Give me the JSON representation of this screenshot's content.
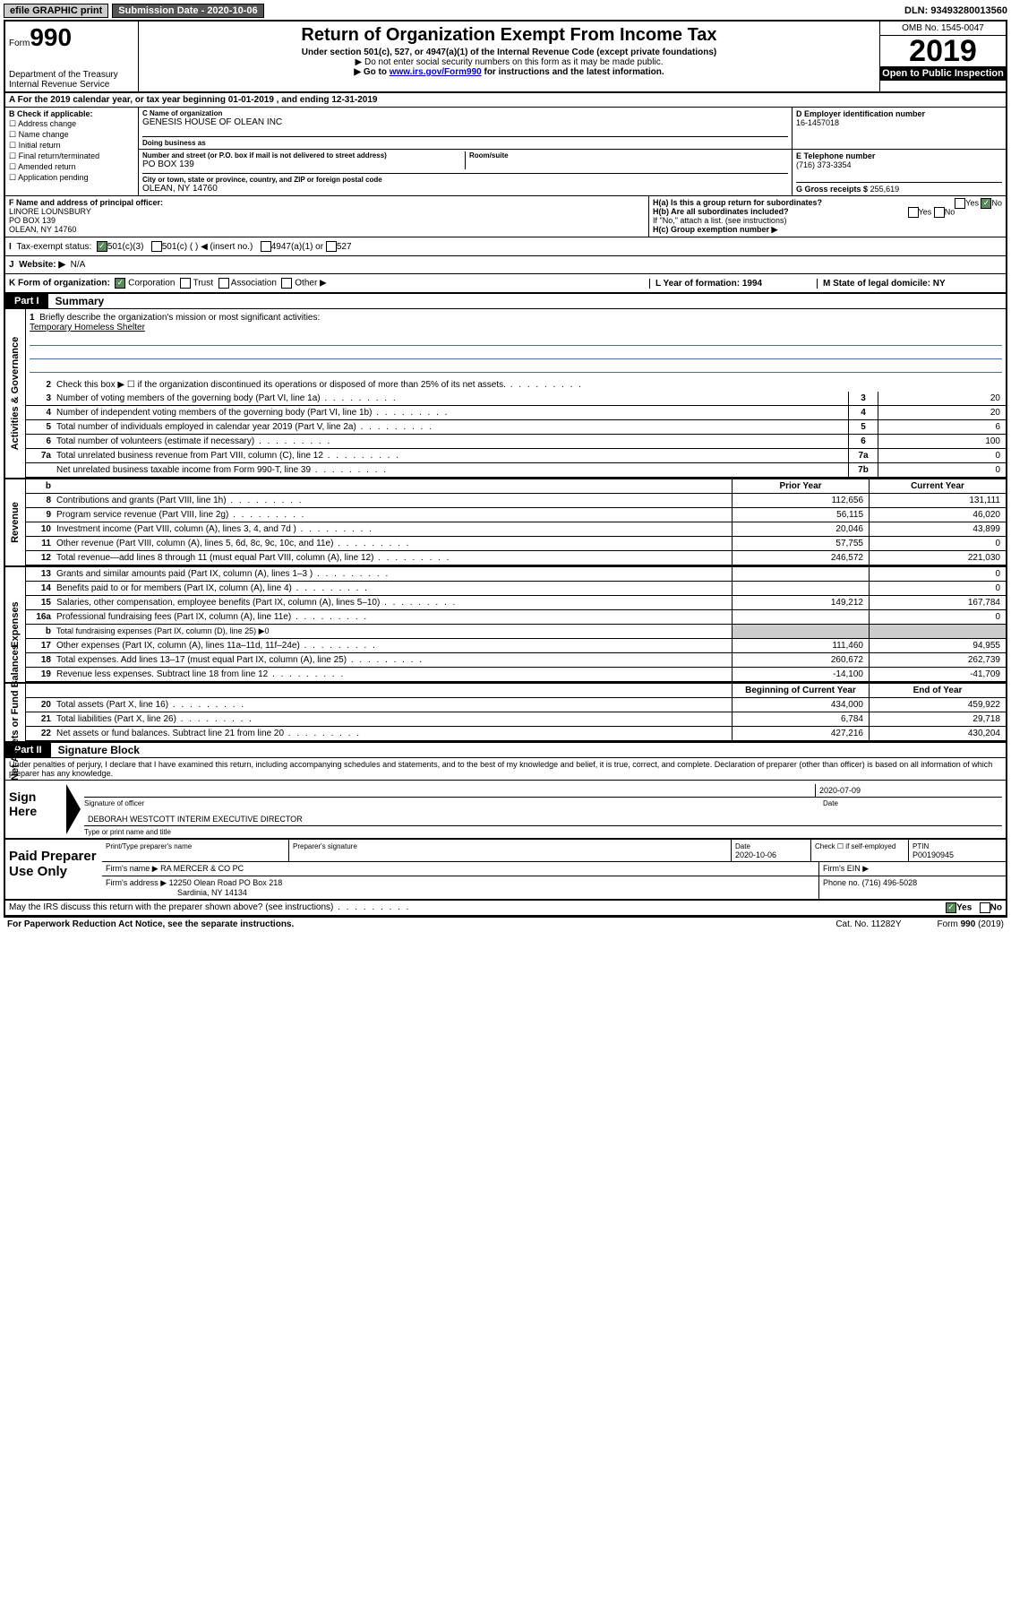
{
  "topbar": {
    "efile": "efile GRAPHIC print",
    "submission_label": "Submission Date - 2020-10-06",
    "dln": "DLN: 93493280013560"
  },
  "header": {
    "form_prefix": "Form",
    "form_number": "990",
    "dept": "Department of the Treasury",
    "irs": "Internal Revenue Service",
    "title": "Return of Organization Exempt From Income Tax",
    "sub1": "Under section 501(c), 527, or 4947(a)(1) of the Internal Revenue Code (except private foundations)",
    "sub2": "▶ Do not enter social security numbers on this form as it may be made public.",
    "sub3_pre": "▶ Go to ",
    "sub3_link": "www.irs.gov/Form990",
    "sub3_post": " for instructions and the latest information.",
    "omb": "OMB No. 1545-0047",
    "year": "2019",
    "open": "Open to Public Inspection"
  },
  "rowA": "A For the 2019 calendar year, or tax year beginning 01-01-2019     , and ending 12-31-2019",
  "boxB": {
    "title": "B Check if applicable:",
    "opts": [
      "Address change",
      "Name change",
      "Initial return",
      "Final return/terminated",
      "Amended return",
      "Application pending"
    ]
  },
  "boxC": {
    "name_label": "C Name of organization",
    "name": "GENESIS HOUSE OF OLEAN INC",
    "dba_label": "Doing business as",
    "addr_label": "Number and street (or P.O. box if mail is not delivered to street address)",
    "room_label": "Room/suite",
    "addr": "PO BOX 139",
    "city_label": "City or town, state or province, country, and ZIP or foreign postal code",
    "city": "OLEAN, NY  14760"
  },
  "boxD": {
    "label": "D Employer identification number",
    "val": "16-1457018"
  },
  "boxE": {
    "label": "E Telephone number",
    "val": "(716) 373-3354"
  },
  "boxG": {
    "label": "G Gross receipts $",
    "val": "255,619"
  },
  "boxF": {
    "label": "F Name and address of principal officer:",
    "name": "LINORE LOUNSBURY",
    "addr1": "PO BOX 139",
    "addr2": "OLEAN, NY  14760"
  },
  "boxH": {
    "a": "H(a)  Is this a group return for subordinates?",
    "b": "H(b)  Are all subordinates included?",
    "b_note": "If \"No,\" attach a list. (see instructions)",
    "c": "H(c)  Group exemption number ▶",
    "yes": "Yes",
    "no": "No"
  },
  "rowI": {
    "label": "Tax-exempt status:",
    "opt1": "501(c)(3)",
    "opt2": "501(c) (  ) ◀ (insert no.)",
    "opt3": "4947(a)(1) or",
    "opt4": "527"
  },
  "rowJ": {
    "label": "Website: ▶",
    "val": "N/A"
  },
  "rowK": {
    "label": "K Form of organization:",
    "opts": [
      "Corporation",
      "Trust",
      "Association",
      "Other ▶"
    ],
    "L": "L Year of formation: 1994",
    "M": "M State of legal domicile: NY"
  },
  "part1": {
    "tab": "Part I",
    "title": "Summary"
  },
  "sideLabels": {
    "gov": "Activities & Governance",
    "rev": "Revenue",
    "exp": "Expenses",
    "net": "Net Assets or Fund Balances"
  },
  "mission": {
    "num": "1",
    "label": "Briefly describe the organization's mission or most significant activities:",
    "text": "Temporary Homeless Shelter"
  },
  "govLines": [
    {
      "n": "2",
      "d": "Check this box ▶ ☐  if the organization discontinued its operations or disposed of more than 25% of its net assets.",
      "noval": true
    },
    {
      "n": "3",
      "d": "Number of voting members of the governing body (Part VI, line 1a)",
      "c": "3",
      "v": "20"
    },
    {
      "n": "4",
      "d": "Number of independent voting members of the governing body (Part VI, line 1b)",
      "c": "4",
      "v": "20"
    },
    {
      "n": "5",
      "d": "Total number of individuals employed in calendar year 2019 (Part V, line 2a)",
      "c": "5",
      "v": "6"
    },
    {
      "n": "6",
      "d": "Total number of volunteers (estimate if necessary)",
      "c": "6",
      "v": "100"
    },
    {
      "n": "7a",
      "d": "Total unrelated business revenue from Part VIII, column (C), line 12",
      "c": "7a",
      "v": "0"
    },
    {
      "n": "",
      "d": "Net unrelated business taxable income from Form 990-T, line 39",
      "c": "7b",
      "v": "0"
    }
  ],
  "pyHeader": {
    "b": "b",
    "prior": "Prior Year",
    "current": "Current Year"
  },
  "revLines": [
    {
      "n": "8",
      "d": "Contributions and grants (Part VIII, line 1h)",
      "p": "112,656",
      "c": "131,111"
    },
    {
      "n": "9",
      "d": "Program service revenue (Part VIII, line 2g)",
      "p": "56,115",
      "c": "46,020"
    },
    {
      "n": "10",
      "d": "Investment income (Part VIII, column (A), lines 3, 4, and 7d )",
      "p": "20,046",
      "c": "43,899"
    },
    {
      "n": "11",
      "d": "Other revenue (Part VIII, column (A), lines 5, 6d, 8c, 9c, 10c, and 11e)",
      "p": "57,755",
      "c": "0"
    },
    {
      "n": "12",
      "d": "Total revenue—add lines 8 through 11 (must equal Part VIII, column (A), line 12)",
      "p": "246,572",
      "c": "221,030"
    }
  ],
  "expLines": [
    {
      "n": "13",
      "d": "Grants and similar amounts paid (Part IX, column (A), lines 1–3 )",
      "p": "",
      "c": "0"
    },
    {
      "n": "14",
      "d": "Benefits paid to or for members (Part IX, column (A), line 4)",
      "p": "",
      "c": "0"
    },
    {
      "n": "15",
      "d": "Salaries, other compensation, employee benefits (Part IX, column (A), lines 5–10)",
      "p": "149,212",
      "c": "167,784"
    },
    {
      "n": "16a",
      "d": "Professional fundraising fees (Part IX, column (A), line 11e)",
      "p": "",
      "c": "0"
    },
    {
      "n": "b",
      "d": "Total fundraising expenses (Part IX, column (D), line 25) ▶0",
      "grey": true
    },
    {
      "n": "17",
      "d": "Other expenses (Part IX, column (A), lines 11a–11d, 11f–24e)",
      "p": "111,460",
      "c": "94,955"
    },
    {
      "n": "18",
      "d": "Total expenses. Add lines 13–17 (must equal Part IX, column (A), line 25)",
      "p": "260,672",
      "c": "262,739"
    },
    {
      "n": "19",
      "d": "Revenue less expenses. Subtract line 18 from line 12",
      "p": "-14,100",
      "c": "-41,709"
    }
  ],
  "netHeader": {
    "prior": "Beginning of Current Year",
    "current": "End of Year"
  },
  "netLines": [
    {
      "n": "20",
      "d": "Total assets (Part X, line 16)",
      "p": "434,000",
      "c": "459,922"
    },
    {
      "n": "21",
      "d": "Total liabilities (Part X, line 26)",
      "p": "6,784",
      "c": "29,718"
    },
    {
      "n": "22",
      "d": "Net assets or fund balances. Subtract line 21 from line 20",
      "p": "427,216",
      "c": "430,204"
    }
  ],
  "part2": {
    "tab": "Part II",
    "title": "Signature Block"
  },
  "perjury": "Under penalties of perjury, I declare that I have examined this return, including accompanying schedules and statements, and to the best of my knowledge and belief, it is true, correct, and complete. Declaration of preparer (other than officer) is based on all information of which preparer has any knowledge.",
  "sign": {
    "label": "Sign Here",
    "date": "2020-07-09",
    "sig_label": "Signature of officer",
    "date_label": "Date",
    "name": "DEBORAH WESTCOTT  INTERIM EXECUTIVE DIRECTOR",
    "name_label": "Type or print name and title"
  },
  "paid": {
    "label": "Paid Preparer Use Only",
    "h1": "Print/Type preparer's name",
    "h2": "Preparer's signature",
    "h3": "Date",
    "date": "2020-10-06",
    "h4": "Check ☐ if self-employed",
    "h5": "PTIN",
    "ptin": "P00190945",
    "firm_label": "Firm's name     ▶",
    "firm": "RA MERCER & CO PC",
    "ein_label": "Firm's EIN ▶",
    "addr_label": "Firm's address ▶",
    "addr1": "12250 Olean Road PO Box 218",
    "addr2": "Sardinia, NY  14134",
    "phone_label": "Phone no.",
    "phone": "(716) 496-5028"
  },
  "footer": {
    "discuss": "May the IRS discuss this return with the preparer shown above? (see instructions)",
    "yes": "Yes",
    "no": "No",
    "paperwork": "For Paperwork Reduction Act Notice, see the separate instructions.",
    "cat": "Cat. No. 11282Y",
    "form": "Form 990 (2019)"
  }
}
